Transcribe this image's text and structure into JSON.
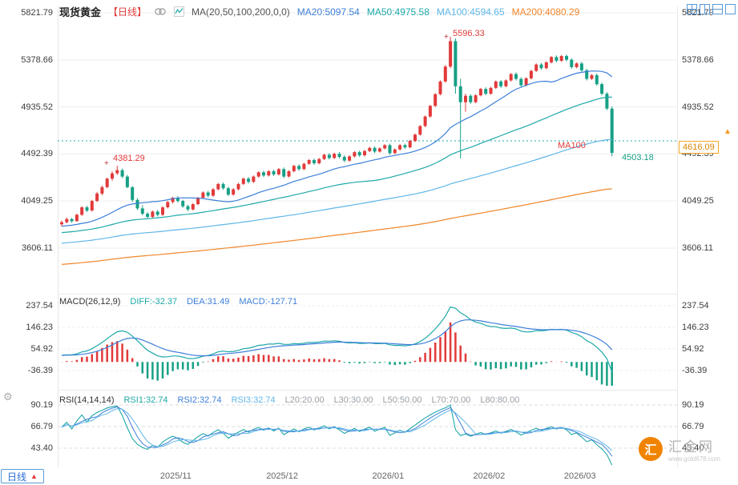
{
  "header": {
    "symbol": "现货黄金",
    "period": "【日线】",
    "ma_settings": "MA(20,50,100,200,0,0)",
    "ma_values": [
      {
        "label": "MA20:5097.54",
        "color": "#3d7fd8"
      },
      {
        "label": "MA50:4975.58",
        "color": "#1fa8a8"
      },
      {
        "label": "MA100:4594.65",
        "color": "#5fb6e8"
      },
      {
        "label": "MA200:4080.29",
        "color": "#f0862a"
      }
    ]
  },
  "colors": {
    "up": "#e23a3a",
    "down": "#16a085",
    "ma20": "#3d7fd8",
    "ma50": "#1fa8a8",
    "ma100": "#5fb6e8",
    "ma200": "#f0862a",
    "reference": "#1fa8a8",
    "badge": "#f59a23"
  },
  "chart_data": {
    "type": "candlestick",
    "title": "现货黄金 日线",
    "price_axis": [
      "5821.79",
      "5378.66",
      "4935.52",
      "4492.39",
      "4049.25",
      "3606.11"
    ],
    "x_labels": [
      "2025/11",
      "2025/12",
      "2026/01",
      "2026/02",
      "2026/03"
    ],
    "x_label_indices": [
      23,
      44,
      65,
      85,
      103
    ],
    "reference_line": 4616.09,
    "annotations": {
      "peak": "5596.33",
      "early_high": "4381.29",
      "ma100_tag": "MA100",
      "last_price": "4503.18",
      "axis_badge": "4616.09"
    },
    "ma_windows": [
      20,
      50,
      100,
      200
    ],
    "candles": [
      [
        3830,
        3865,
        3810,
        3850
      ],
      [
        3850,
        3895,
        3840,
        3880
      ],
      [
        3880,
        3890,
        3845,
        3860
      ],
      [
        3860,
        3930,
        3855,
        3920
      ],
      [
        3920,
        4000,
        3910,
        3990
      ],
      [
        3990,
        4005,
        3945,
        3960
      ],
      [
        3960,
        4060,
        3950,
        4050
      ],
      [
        4050,
        4135,
        4040,
        4120
      ],
      [
        4120,
        4195,
        4105,
        4180
      ],
      [
        4180,
        4270,
        4170,
        4260
      ],
      [
        4260,
        4330,
        4240,
        4310
      ],
      [
        4310,
        4381.29,
        4295,
        4340
      ],
      [
        4340,
        4355,
        4265,
        4280
      ],
      [
        4280,
        4295,
        4170,
        4180
      ],
      [
        4180,
        4190,
        4040,
        4060
      ],
      [
        4060,
        4075,
        3965,
        3980
      ],
      [
        3980,
        4010,
        3915,
        3930
      ],
      [
        3930,
        3945,
        3880,
        3900
      ],
      [
        3900,
        3960,
        3885,
        3950
      ],
      [
        3950,
        3965,
        3905,
        3920
      ],
      [
        3920,
        4000,
        3910,
        3990
      ],
      [
        3990,
        4050,
        3980,
        4040
      ],
      [
        4040,
        4090,
        4025,
        4080
      ],
      [
        4080,
        4095,
        4035,
        4050
      ],
      [
        4050,
        4060,
        3985,
        4000
      ],
      [
        4000,
        4015,
        3955,
        3970
      ],
      [
        3970,
        4030,
        3960,
        4020
      ],
      [
        4020,
        4090,
        4010,
        4080
      ],
      [
        4080,
        4140,
        4070,
        4130
      ],
      [
        4130,
        4145,
        4085,
        4100
      ],
      [
        4100,
        4170,
        4090,
        4160
      ],
      [
        4160,
        4220,
        4150,
        4210
      ],
      [
        4210,
        4225,
        4155,
        4170
      ],
      [
        4170,
        4185,
        4095,
        4110
      ],
      [
        4110,
        4170,
        4100,
        4160
      ],
      [
        4160,
        4220,
        4150,
        4210
      ],
      [
        4210,
        4270,
        4200,
        4260
      ],
      [
        4260,
        4275,
        4215,
        4230
      ],
      [
        4230,
        4290,
        4220,
        4280
      ],
      [
        4280,
        4330,
        4270,
        4320
      ],
      [
        4320,
        4335,
        4275,
        4290
      ],
      [
        4290,
        4340,
        4280,
        4330
      ],
      [
        4330,
        4345,
        4285,
        4300
      ],
      [
        4300,
        4360,
        4290,
        4350
      ],
      [
        4350,
        4365,
        4265,
        4280
      ],
      [
        4280,
        4340,
        4270,
        4330
      ],
      [
        4330,
        4390,
        4320,
        4380
      ],
      [
        4380,
        4395,
        4335,
        4350
      ],
      [
        4350,
        4410,
        4340,
        4400
      ],
      [
        4400,
        4445,
        4390,
        4435
      ],
      [
        4435,
        4450,
        4390,
        4405
      ],
      [
        4405,
        4455,
        4395,
        4445
      ],
      [
        4445,
        4495,
        4435,
        4485
      ],
      [
        4485,
        4500,
        4440,
        4455
      ],
      [
        4455,
        4505,
        4445,
        4495
      ],
      [
        4495,
        4510,
        4450,
        4465
      ],
      [
        4465,
        4480,
        4415,
        4430
      ],
      [
        4430,
        4480,
        4420,
        4470
      ],
      [
        4470,
        4520,
        4460,
        4510
      ],
      [
        4510,
        4525,
        4465,
        4480
      ],
      [
        4480,
        4530,
        4470,
        4520
      ],
      [
        4520,
        4560,
        4510,
        4550
      ],
      [
        4550,
        4565,
        4500,
        4515
      ],
      [
        4515,
        4555,
        4505,
        4545
      ],
      [
        4545,
        4585,
        4535,
        4575
      ],
      [
        4575,
        4590,
        4485,
        4500
      ],
      [
        4500,
        4545,
        4490,
        4535
      ],
      [
        4535,
        4585,
        4525,
        4575
      ],
      [
        4575,
        4590,
        4540,
        4555
      ],
      [
        4555,
        4625,
        4545,
        4615
      ],
      [
        4615,
        4685,
        4605,
        4675
      ],
      [
        4675,
        4765,
        4665,
        4755
      ],
      [
        4755,
        4855,
        4745,
        4845
      ],
      [
        4845,
        4955,
        4835,
        4945
      ],
      [
        4945,
        5065,
        4935,
        5055
      ],
      [
        5055,
        5185,
        5045,
        5175
      ],
      [
        5175,
        5330,
        5165,
        5315
      ],
      [
        5315,
        5596.33,
        5300,
        5555
      ],
      [
        5555,
        5580,
        5060,
        5130
      ],
      [
        5130,
        5200,
        4450,
        4980
      ],
      [
        4980,
        5060,
        4890,
        5040
      ],
      [
        5040,
        5055,
        4965,
        4980
      ],
      [
        4980,
        5055,
        4970,
        5045
      ],
      [
        5045,
        5115,
        5035,
        5105
      ],
      [
        5105,
        5120,
        5045,
        5060
      ],
      [
        5060,
        5125,
        5050,
        5115
      ],
      [
        5115,
        5185,
        5105,
        5175
      ],
      [
        5175,
        5190,
        5115,
        5130
      ],
      [
        5130,
        5195,
        5120,
        5185
      ],
      [
        5185,
        5255,
        5175,
        5245
      ],
      [
        5245,
        5260,
        5185,
        5200
      ],
      [
        5200,
        5215,
        5125,
        5140
      ],
      [
        5140,
        5215,
        5130,
        5205
      ],
      [
        5205,
        5285,
        5195,
        5275
      ],
      [
        5275,
        5345,
        5265,
        5335
      ],
      [
        5335,
        5350,
        5285,
        5300
      ],
      [
        5300,
        5365,
        5290,
        5355
      ],
      [
        5355,
        5415,
        5345,
        5405
      ],
      [
        5405,
        5420,
        5355,
        5370
      ],
      [
        5370,
        5425,
        5360,
        5415
      ],
      [
        5415,
        5430,
        5365,
        5380
      ],
      [
        5380,
        5395,
        5295,
        5310
      ],
      [
        5310,
        5355,
        5300,
        5345
      ],
      [
        5345,
        5360,
        5265,
        5280
      ],
      [
        5280,
        5295,
        5185,
        5200
      ],
      [
        5200,
        5245,
        5190,
        5235
      ],
      [
        5235,
        5250,
        5135,
        5150
      ],
      [
        5150,
        5165,
        5045,
        5060
      ],
      [
        5060,
        5075,
        4905,
        4920
      ],
      [
        4920,
        4940,
        4470,
        4503.18
      ]
    ],
    "macd": {
      "header": "MACD(26,12,9)",
      "diff": "DIFF:-32.37",
      "dea": "DEA:31.49",
      "macd": "MACD:-127.71",
      "axis": [
        "237.54",
        "146.23",
        "54.92",
        "-36.39"
      ]
    },
    "rsi": {
      "header": "RSI(14,14,14)",
      "labels": [
        "RSI1:32.74",
        "RSI2:32.74",
        "RSI3:32.74",
        "L20:20.00",
        "L30:30.00",
        "L50:50.00",
        "L70:70.00",
        "L80:80.00"
      ],
      "axis": [
        "90.19",
        "66.79",
        "43.40"
      ]
    }
  },
  "bottom": {
    "period_tab": "日线"
  },
  "watermark": {
    "name": "汇金网",
    "site": "www.gold678.com"
  }
}
